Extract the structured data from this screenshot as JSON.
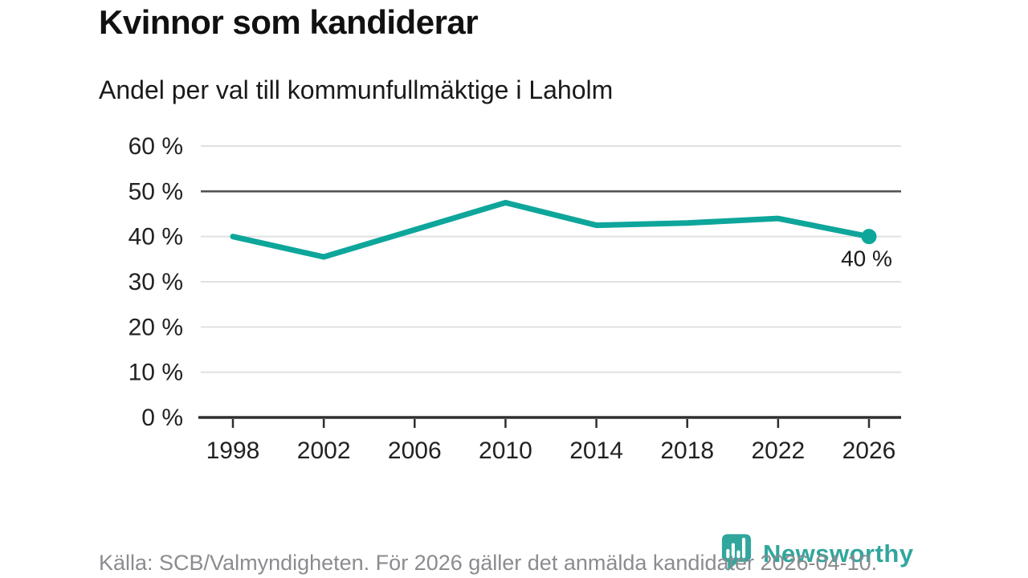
{
  "title": "Kvinnor som kandiderar",
  "subtitle": "Andel per val till kommunfullmäktige i Laholm",
  "footer": {
    "source": "Källa: SCB/Valmyndigheten. För 2026 gäller det anmälda kandidater 2026-04-10.",
    "brand": "Newsworthy"
  },
  "colors": {
    "line": "#0ea69b",
    "grid_light": "#e0e0e0",
    "grid_reference": "#4d4d4d",
    "axis": "#2e2e2e",
    "tick_text": "#222222",
    "annotation_text": "#1a1a1a",
    "source_text": "#8b8b90",
    "brand_teal": "#31a69d"
  },
  "chart_data": {
    "type": "line",
    "title": "Kvinnor som kandiderar",
    "subtitle": "Andel per val till kommunfullmäktige i Laholm",
    "x": [
      1998,
      2002,
      2006,
      2010,
      2014,
      2018,
      2022,
      2026
    ],
    "x_labels": [
      "1998",
      "2002",
      "2006",
      "2010",
      "2014",
      "2018",
      "2022",
      "2026"
    ],
    "series": [
      {
        "name": "Kvinnor som kandiderar",
        "values": [
          40,
          35.5,
          41.5,
          47.5,
          42.5,
          43,
          44,
          40
        ]
      }
    ],
    "ylabel": "",
    "xlabel": "",
    "ylim": [
      0,
      60
    ],
    "y_ticks": [
      0,
      10,
      20,
      30,
      40,
      50,
      60
    ],
    "y_tick_labels": [
      "0 %",
      "10 %",
      "20 %",
      "30 %",
      "40 %",
      "50 %",
      "60 %"
    ],
    "reference_line": 50,
    "end_point_label": "40 %",
    "grid": true,
    "legend": false
  }
}
